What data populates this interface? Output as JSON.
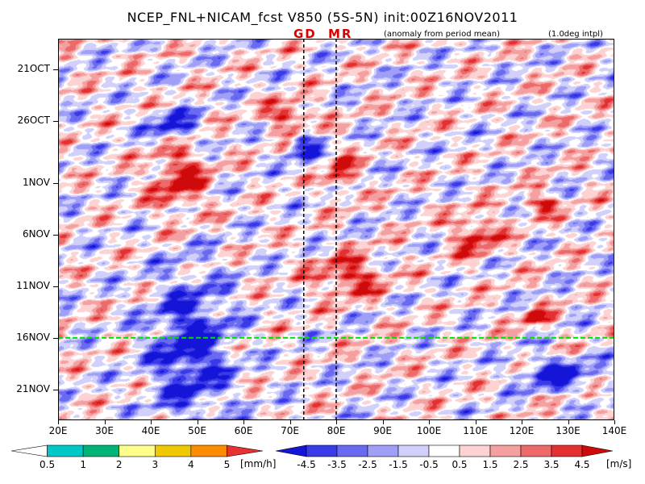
{
  "title": "NCEP_FNL+NICAM_fcst V850 (5S-5N) init:00Z16NOV2011",
  "subtitle_left": "(anomaly from period mean)",
  "subtitle_right": "(1.0deg intpl)",
  "markers": [
    "GD",
    "MR"
  ],
  "chart_data": {
    "type": "heatmap",
    "title": "NCEP_FNL+NICAM_fcst V850 (5S-5N) init:00Z16NOV2011",
    "xlabel": "",
    "ylabel": "",
    "x_ticks": [
      "20E",
      "30E",
      "40E",
      "50E",
      "60E",
      "70E",
      "80E",
      "90E",
      "100E",
      "110E",
      "120E",
      "130E",
      "140E"
    ],
    "x_range": [
      20,
      140
    ],
    "y_ticks": [
      "21OCT",
      "26OCT",
      "1NOV",
      "6NOV",
      "11NOV",
      "16NOV",
      "21NOV"
    ],
    "y_range_days": [
      "18OCT2011",
      "24NOV2011"
    ],
    "y_direction": "top-to-bottom (time increasing downward)",
    "forecast_start": "16NOV",
    "forecast_line_color": "#00dd00",
    "vertical_markers": [
      {
        "label": "GD",
        "lon": 73
      },
      {
        "label": "MR",
        "lon": 80
      }
    ],
    "wind_colorbar": {
      "levels": [
        -4.5,
        -3.5,
        -2.5,
        -1.5,
        -0.5,
        0.5,
        1.5,
        2.5,
        3.5,
        4.5
      ],
      "labels": [
        "-4.5",
        "-3.5",
        "-2.5",
        "-1.5",
        "-0.5",
        "0.5",
        "1.5",
        "2.5",
        "3.5",
        "4.5"
      ],
      "colors": [
        "#1515d8",
        "#3a3ae8",
        "#6a6af0",
        "#9f9ff7",
        "#d0d0fb",
        "#ffffff",
        "#fcd2d2",
        "#f4a0a0",
        "#ec6a6a",
        "#e43030",
        "#cf0a0a"
      ],
      "unit": "[m/s]"
    },
    "rain_colorbar": {
      "levels": [
        0.5,
        1,
        2,
        3,
        4,
        5
      ],
      "labels": [
        "0.5",
        "1",
        "2",
        "3",
        "4",
        "5"
      ],
      "colors": [
        "#ffffff",
        "#00c8c8",
        "#00b478",
        "#ffff8c",
        "#f0c800",
        "#ff8c00",
        "#e83232"
      ],
      "unit": "[mm/h]"
    },
    "major_anomalies": [
      {
        "sign": "negative",
        "lon_range": [
          40,
          50
        ],
        "dates": [
          "25OCT",
          "28OCT"
        ]
      },
      {
        "sign": "negative",
        "lon_range": [
          40,
          57
        ],
        "dates": [
          "10NOV",
          "24NOV"
        ]
      },
      {
        "sign": "positive",
        "lon_range": [
          40,
          52
        ],
        "dates": [
          "28OCT",
          "4NOV"
        ]
      },
      {
        "sign": "positive",
        "lon_range": [
          65,
          75
        ],
        "dates": [
          "24OCT",
          "27OCT"
        ]
      },
      {
        "sign": "negative",
        "lon_range": [
          70,
          76
        ],
        "dates": [
          "27OCT",
          "30OCT"
        ]
      },
      {
        "sign": "positive",
        "lon_range": [
          78,
          84
        ],
        "dates": [
          "29OCT",
          "2NOV"
        ]
      },
      {
        "sign": "positive",
        "lon_range": [
          75,
          90
        ],
        "dates": [
          "8NOV",
          "12NOV"
        ]
      },
      {
        "sign": "positive",
        "lon_range": [
          105,
          115
        ],
        "dates": [
          "4NOV",
          "8NOV"
        ]
      },
      {
        "sign": "positive",
        "lon_range": [
          120,
          128
        ],
        "dates": [
          "2NOV",
          "4NOV"
        ]
      },
      {
        "sign": "positive",
        "lon_range": [
          120,
          126
        ],
        "dates": [
          "13NOV",
          "15NOV"
        ]
      },
      {
        "sign": "negative",
        "lon_range": [
          120,
          135
        ],
        "dates": [
          "18NOV",
          "21NOV"
        ]
      }
    ]
  }
}
